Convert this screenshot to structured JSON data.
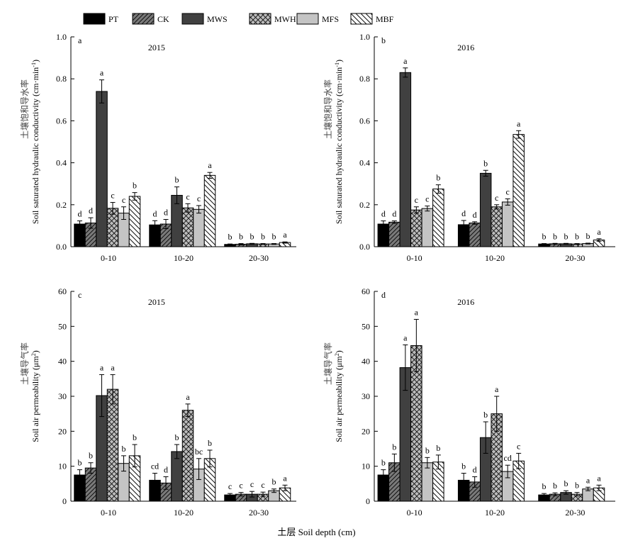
{
  "legend": [
    {
      "label": "PT",
      "pattern": "solid-black"
    },
    {
      "label": "CK",
      "pattern": "diag-dark"
    },
    {
      "label": "MWS",
      "pattern": "solid-darkgray"
    },
    {
      "label": "MWH",
      "pattern": "crosshatch"
    },
    {
      "label": "MFS",
      "pattern": "solid-lightgray"
    },
    {
      "label": "MBF",
      "pattern": "diag-white"
    }
  ],
  "xlabel_global": "土层 Soil depth (cm)",
  "colors": {
    "PT": "#000000",
    "CK": "#707070",
    "MWS": "#3a3a3a",
    "MWH": "#b0b0b0",
    "MFS": "#c4c4c4",
    "MBF": "#ffffff"
  },
  "chart_data": [
    {
      "type": "bar",
      "panel": "a",
      "year": "2015",
      "ylabel_cn": "土壤饱和导水率",
      "ylabel_en": "Soil saturated hydraulic conductivity (cm·min",
      "ylabel_sup": "-1",
      "ylabel_end": ")",
      "ylim": [
        0,
        1.0
      ],
      "yticks": [
        "0.0",
        "0.2",
        "0.4",
        "0.6",
        "0.8",
        "1.0"
      ],
      "categories": [
        "0-10",
        "10-20",
        "20-30"
      ],
      "series": [
        {
          "name": "PT",
          "values": [
            0.108,
            0.104,
            0.011
          ],
          "errors": [
            0.015,
            0.02,
            0.002
          ],
          "letters": [
            "d",
            "d",
            "b"
          ]
        },
        {
          "name": "CK",
          "values": [
            0.113,
            0.108,
            0.012
          ],
          "errors": [
            0.025,
            0.022,
            0.003
          ],
          "letters": [
            "d",
            "d",
            "b"
          ]
        },
        {
          "name": "MWS",
          "values": [
            0.74,
            0.245,
            0.014
          ],
          "errors": [
            0.055,
            0.04,
            0.002
          ],
          "letters": [
            "a",
            "b",
            "b"
          ]
        },
        {
          "name": "MWH",
          "values": [
            0.183,
            0.185,
            0.013
          ],
          "errors": [
            0.028,
            0.02,
            0.002
          ],
          "letters": [
            "c",
            "c",
            "b"
          ]
        },
        {
          "name": "MFS",
          "values": [
            0.16,
            0.178,
            0.013
          ],
          "errors": [
            0.03,
            0.018,
            0.002
          ],
          "letters": [
            "c",
            "c",
            "b"
          ]
        },
        {
          "name": "MBF",
          "values": [
            0.24,
            0.34,
            0.02
          ],
          "errors": [
            0.018,
            0.014,
            0.003
          ],
          "letters": [
            "b",
            "a",
            "a"
          ]
        }
      ]
    },
    {
      "type": "bar",
      "panel": "b",
      "year": "2016",
      "ylabel_cn": "土壤饱和导水率",
      "ylabel_en": "Soil saturated hydraulic conductivity (cm·min",
      "ylabel_sup": "-1",
      "ylabel_end": ")",
      "ylim": [
        0,
        1.0
      ],
      "yticks": [
        "0.0",
        "0.2",
        "0.4",
        "0.6",
        "0.8",
        "1.0"
      ],
      "categories": [
        "0-10",
        "10-20",
        "20-30"
      ],
      "series": [
        {
          "name": "PT",
          "values": [
            0.108,
            0.105,
            0.013
          ],
          "errors": [
            0.015,
            0.02,
            0.002
          ],
          "letters": [
            "d",
            "d",
            "b"
          ]
        },
        {
          "name": "CK",
          "values": [
            0.117,
            0.113,
            0.014
          ],
          "errors": [
            0.006,
            0.006,
            0.002
          ],
          "letters": [
            "d",
            "d",
            "b"
          ]
        },
        {
          "name": "MWS",
          "values": [
            0.83,
            0.35,
            0.014
          ],
          "errors": [
            0.022,
            0.014,
            0.002
          ],
          "letters": [
            "a",
            "b",
            "b"
          ]
        },
        {
          "name": "MWH",
          "values": [
            0.175,
            0.19,
            0.013
          ],
          "errors": [
            0.015,
            0.01,
            0.002
          ],
          "letters": [
            "c",
            "c",
            "b"
          ]
        },
        {
          "name": "MFS",
          "values": [
            0.182,
            0.213,
            0.015
          ],
          "errors": [
            0.012,
            0.015,
            0.002
          ],
          "letters": [
            "c",
            "c",
            "b"
          ]
        },
        {
          "name": "MBF",
          "values": [
            0.275,
            0.535,
            0.032
          ],
          "errors": [
            0.02,
            0.018,
            0.006
          ],
          "letters": [
            "b",
            "a",
            "a"
          ]
        }
      ]
    },
    {
      "type": "bar",
      "panel": "c",
      "year": "2015",
      "ylabel_cn": "土壤导气率",
      "ylabel_en": "Soil air permeability (μm",
      "ylabel_sup": "2",
      "ylabel_end": ")",
      "ylim": [
        0,
        60
      ],
      "yticks": [
        "0",
        "10",
        "20",
        "30",
        "40",
        "50",
        "60"
      ],
      "categories": [
        "0-10",
        "10-20",
        "20-30"
      ],
      "series": [
        {
          "name": "PT",
          "values": [
            7.5,
            6.0,
            1.8
          ],
          "errors": [
            1.5,
            2.0,
            0.4
          ],
          "letters": [
            "b",
            "cd",
            "c"
          ]
        },
        {
          "name": "CK",
          "values": [
            9.5,
            5.2,
            2.0
          ],
          "errors": [
            1.5,
            1.8,
            0.5
          ],
          "letters": [
            "b",
            "d",
            "c"
          ]
        },
        {
          "name": "MWS",
          "values": [
            30.2,
            14.2,
            2.0
          ],
          "errors": [
            6.0,
            2.0,
            0.8
          ],
          "letters": [
            "a",
            "b",
            "c"
          ]
        },
        {
          "name": "MWH",
          "values": [
            32.0,
            26.0,
            2.0
          ],
          "errors": [
            4.2,
            1.8,
            0.6
          ],
          "letters": [
            "a",
            "a",
            "c"
          ]
        },
        {
          "name": "MFS",
          "values": [
            10.8,
            9.2,
            3.0
          ],
          "errors": [
            2.2,
            3.0,
            0.5
          ],
          "letters": [
            "b",
            "bc",
            "b"
          ]
        },
        {
          "name": "MBF",
          "values": [
            13.0,
            12.2,
            3.8
          ],
          "errors": [
            3.2,
            2.4,
            0.8
          ],
          "letters": [
            "b",
            "b",
            "a"
          ]
        }
      ]
    },
    {
      "type": "bar",
      "panel": "d",
      "year": "2016",
      "ylabel_cn": "土壤导气率",
      "ylabel_en": "Soil air permeability (μm",
      "ylabel_sup": "2",
      "ylabel_end": ")",
      "ylim": [
        0,
        60
      ],
      "yticks": [
        "0",
        "10",
        "20",
        "30",
        "40",
        "50",
        "60"
      ],
      "categories": [
        "0-10",
        "10-20",
        "20-30"
      ],
      "series": [
        {
          "name": "PT",
          "values": [
            7.5,
            6.0,
            1.8
          ],
          "errors": [
            1.5,
            2.0,
            0.4
          ],
          "letters": [
            "b",
            "b",
            "b"
          ]
        },
        {
          "name": "CK",
          "values": [
            11.0,
            5.5,
            2.0
          ],
          "errors": [
            2.5,
            1.5,
            0.4
          ],
          "letters": [
            "b",
            "d",
            "b"
          ]
        },
        {
          "name": "MWS",
          "values": [
            38.2,
            18.2,
            2.5
          ],
          "errors": [
            6.5,
            4.5,
            0.5
          ],
          "letters": [
            "a",
            "b",
            "b"
          ]
        },
        {
          "name": "MWH",
          "values": [
            44.5,
            25.0,
            2.0
          ],
          "errors": [
            7.5,
            5.0,
            0.5
          ],
          "letters": [
            "a",
            "a",
            "b"
          ]
        },
        {
          "name": "MFS",
          "values": [
            11.0,
            8.5,
            3.5
          ],
          "errors": [
            1.5,
            1.8,
            0.5
          ],
          "letters": [
            "b",
            "cd",
            "a"
          ]
        },
        {
          "name": "MBF",
          "values": [
            11.2,
            11.5,
            3.8
          ],
          "errors": [
            2.0,
            2.2,
            0.8
          ],
          "letters": [
            "b",
            "c",
            "a"
          ]
        }
      ]
    }
  ]
}
